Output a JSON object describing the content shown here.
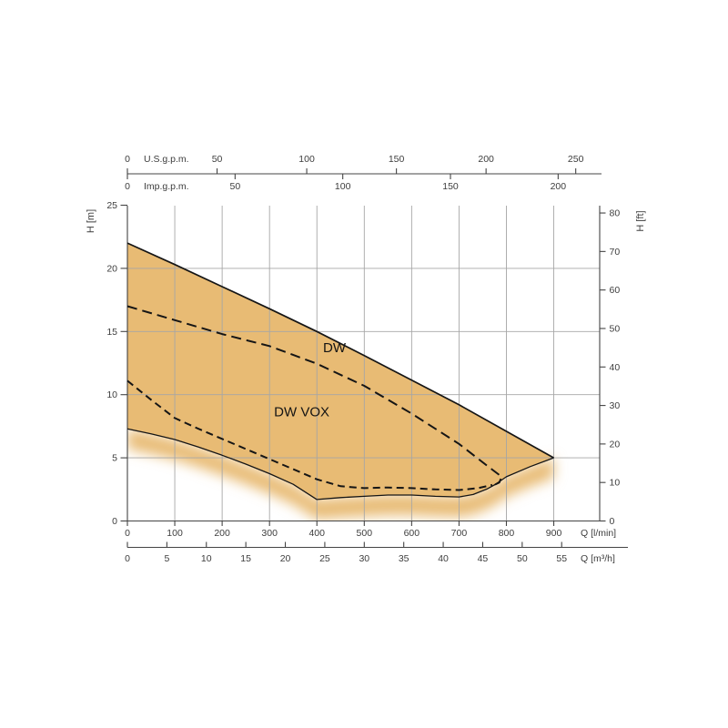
{
  "colors": {
    "fill": "#e8bb74",
    "grid": "#a6a6a6",
    "axis": "#444444",
    "text": "#3d3d3d",
    "curve": "#151515",
    "background": "#ffffff"
  },
  "axes": {
    "us_gpm": {
      "name": "U.S.g.p.m.",
      "ticks": [
        0,
        50,
        100,
        150,
        200,
        250
      ]
    },
    "imp_gpm": {
      "name": "Imp.g.p.m.",
      "ticks": [
        0,
        50,
        100,
        150,
        200
      ]
    },
    "head_m": {
      "name": "H [m]",
      "ticks": [
        0,
        5,
        10,
        15,
        20,
        25
      ]
    },
    "head_ft": {
      "name": "H [ft]",
      "ticks": [
        0,
        10,
        20,
        30,
        40,
        50,
        60,
        70,
        80
      ]
    },
    "flow_lmin": {
      "name": "Q [l/min]",
      "ticks": [
        0,
        100,
        200,
        300,
        400,
        500,
        600,
        700,
        800,
        900
      ]
    },
    "flow_m3h": {
      "name": "Q [m³/h]",
      "ticks": [
        0,
        5,
        10,
        15,
        20,
        25,
        30,
        35,
        40,
        45,
        50,
        55
      ]
    }
  },
  "chart_data": {
    "type": "area",
    "x_label": "Q [l/min]",
    "y_label": "H [m]",
    "x_range": [
      0,
      900
    ],
    "y_range": [
      0,
      25
    ],
    "grid": true,
    "legend_position": "inline-labels",
    "series": [
      {
        "id": "envelope-top",
        "style": "solid",
        "points": [
          [
            0,
            22
          ],
          [
            100,
            20.3
          ],
          [
            200,
            18.55
          ],
          [
            300,
            16.8
          ],
          [
            400,
            15.0
          ],
          [
            500,
            13.1
          ],
          [
            600,
            11.15
          ],
          [
            700,
            9.2
          ],
          [
            800,
            7.1
          ],
          [
            900,
            5.0
          ]
        ]
      },
      {
        "id": "dw-curve",
        "label": "DW",
        "style": "dashed",
        "points": [
          [
            0,
            17
          ],
          [
            100,
            15.9
          ],
          [
            200,
            14.8
          ],
          [
            300,
            13.85
          ],
          [
            400,
            12.45
          ],
          [
            500,
            10.7
          ],
          [
            600,
            8.5
          ],
          [
            700,
            6.1
          ],
          [
            760,
            4.35
          ],
          [
            790,
            3.5
          ],
          [
            785,
            3.05
          ],
          [
            776,
            2.88
          ]
        ]
      },
      {
        "id": "dw-vox-curve",
        "label": "DW VOX",
        "style": "dashed",
        "points": [
          [
            0,
            11.1
          ],
          [
            50,
            9.6
          ],
          [
            100,
            8.15
          ],
          [
            150,
            7.3
          ],
          [
            200,
            6.5
          ],
          [
            250,
            5.7
          ],
          [
            300,
            4.9
          ],
          [
            350,
            4.1
          ],
          [
            400,
            3.3
          ],
          [
            450,
            2.75
          ],
          [
            500,
            2.6
          ],
          [
            550,
            2.65
          ],
          [
            600,
            2.6
          ],
          [
            650,
            2.5
          ],
          [
            700,
            2.45
          ],
          [
            740,
            2.6
          ],
          [
            770,
            2.85
          ]
        ]
      },
      {
        "id": "envelope-bottom",
        "style": "solid",
        "points": [
          [
            0,
            7.3
          ],
          [
            50,
            6.9
          ],
          [
            100,
            6.45
          ],
          [
            150,
            5.85
          ],
          [
            200,
            5.2
          ],
          [
            250,
            4.5
          ],
          [
            300,
            3.75
          ],
          [
            350,
            2.9
          ],
          [
            400,
            1.7
          ],
          [
            450,
            1.85
          ],
          [
            500,
            1.95
          ],
          [
            550,
            2.05
          ],
          [
            600,
            2.05
          ],
          [
            650,
            1.95
          ],
          [
            700,
            1.9
          ],
          [
            730,
            2.1
          ],
          [
            760,
            2.55
          ],
          [
            776,
            2.88
          ],
          [
            800,
            3.5
          ],
          [
            850,
            4.3
          ],
          [
            900,
            5.0
          ]
        ]
      }
    ],
    "area": {
      "between": [
        "envelope-top",
        "envelope-bottom"
      ],
      "fade_below_bottom": true
    },
    "annotations": [
      {
        "text": "DW",
        "x": 437,
        "y": 13.35
      },
      {
        "text": "DW VOX",
        "x": 368,
        "y": 8.3
      }
    ]
  }
}
